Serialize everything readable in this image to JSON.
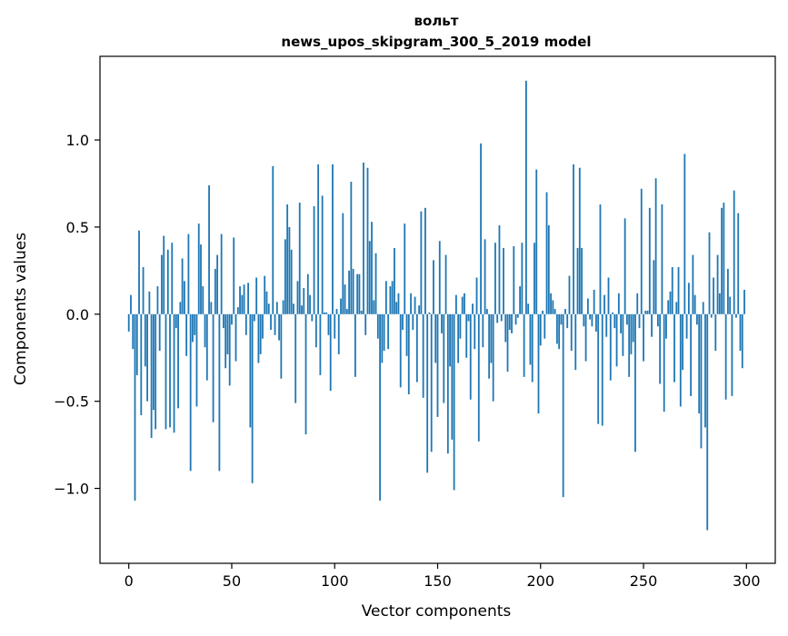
{
  "chart_data": {
    "type": "bar",
    "title": "вольт",
    "subtitle": "news_upos_skipgram_300_5_2019 model",
    "xlabel": "Vector components",
    "ylabel": "Components values",
    "xlim": [
      -14,
      314
    ],
    "ylim": [
      -1.43,
      1.48
    ],
    "xticks": [
      0,
      50,
      100,
      150,
      200,
      250,
      300
    ],
    "xtick_labels": [
      "0",
      "50",
      "100",
      "150",
      "200",
      "250",
      "300"
    ],
    "yticks": [
      -1.0,
      -0.5,
      0.0,
      0.5,
      1.0
    ],
    "ytick_labels": [
      "−1.0",
      "−0.5",
      "0.0",
      "0.5",
      "1.0"
    ],
    "grid": false,
    "bar_color": "#1f77b4",
    "values": [
      -0.1,
      0.11,
      -0.2,
      -1.07,
      -0.35,
      0.48,
      -0.58,
      0.27,
      -0.3,
      -0.5,
      0.13,
      -0.71,
      -0.55,
      -0.66,
      0.16,
      -0.21,
      0.34,
      0.45,
      -0.66,
      0.37,
      -0.65,
      0.41,
      -0.68,
      -0.08,
      -0.54,
      0.07,
      0.32,
      0.19,
      -0.24,
      0.46,
      -0.9,
      -0.16,
      -0.12,
      -0.53,
      0.52,
      0.4,
      0.16,
      -0.19,
      -0.38,
      0.74,
      0.07,
      -0.62,
      0.26,
      0.34,
      -0.9,
      0.46,
      -0.08,
      -0.31,
      -0.23,
      -0.41,
      -0.06,
      0.44,
      -0.27,
      0.04,
      0.16,
      0.11,
      0.17,
      -0.12,
      0.18,
      -0.65,
      -0.97,
      -0.04,
      0.21,
      -0.28,
      -0.23,
      -0.14,
      0.22,
      0.13,
      0.06,
      -0.09,
      0.85,
      -0.12,
      0.07,
      -0.15,
      -0.37,
      0.08,
      0.43,
      0.63,
      0.5,
      0.37,
      0.06,
      -0.51,
      0.19,
      0.64,
      0.05,
      0.15,
      -0.69,
      0.23,
      0.11,
      -0.04,
      0.62,
      -0.19,
      0.86,
      -0.35,
      0.68,
      0.01,
      0.01,
      -0.12,
      -0.44,
      0.86,
      -0.14,
      0.03,
      -0.23,
      0.09,
      0.58,
      0.17,
      0.03,
      0.25,
      0.76,
      0.26,
      -0.36,
      0.23,
      0.23,
      0.02,
      0.87,
      -0.12,
      0.84,
      0.42,
      0.53,
      0.08,
      0.35,
      -0.14,
      -1.07,
      -0.28,
      -0.21,
      0.19,
      -0.2,
      0.16,
      0.19,
      0.38,
      0.07,
      0.12,
      -0.42,
      -0.09,
      0.52,
      -0.24,
      -0.46,
      0.12,
      -0.09,
      0.1,
      -0.39,
      0.05,
      0.59,
      -0.48,
      0.61,
      -0.91,
      0.01,
      -0.79,
      0.31,
      -0.28,
      -0.59,
      0.42,
      -0.11,
      -0.51,
      0.34,
      -0.8,
      -0.3,
      -0.72,
      -1.01,
      0.11,
      -0.28,
      -0.14,
      0.1,
      0.12,
      -0.25,
      -0.04,
      -0.49,
      0.06,
      -0.2,
      0.21,
      -0.73,
      0.98,
      -0.19,
      0.43,
      0.03,
      -0.37,
      -0.28,
      -0.5,
      0.41,
      -0.05,
      0.51,
      -0.04,
      0.38,
      -0.16,
      -0.33,
      -0.09,
      -0.11,
      0.39,
      -0.06,
      -0.02,
      0.16,
      0.41,
      -0.36,
      1.34,
      0.06,
      -0.29,
      -0.39,
      0.41,
      0.83,
      -0.57,
      -0.18,
      0.02,
      -0.14,
      0.7,
      0.51,
      0.12,
      0.08,
      0.03,
      -0.17,
      -0.2,
      -0.06,
      -1.05,
      0.03,
      -0.08,
      0.22,
      -0.21,
      0.86,
      -0.32,
      0.38,
      0.84,
      0.38,
      -0.07,
      -0.27,
      0.09,
      -0.03,
      -0.07,
      0.14,
      -0.1,
      -0.63,
      0.63,
      -0.64,
      0.11,
      -0.13,
      0.21,
      -0.38,
      0.01,
      -0.08,
      -0.3,
      0.12,
      -0.11,
      -0.24,
      0.55,
      -0.06,
      -0.36,
      -0.23,
      -0.16,
      -0.79,
      0.12,
      -0.08,
      0.72,
      -0.27,
      0.02,
      0.02,
      0.61,
      -0.13,
      0.31,
      0.78,
      -0.07,
      -0.4,
      0.63,
      -0.56,
      -0.14,
      0.08,
      0.13,
      0.27,
      -0.39,
      0.07,
      0.27,
      -0.53,
      -0.32,
      0.92,
      -0.14,
      0.18,
      -0.47,
      0.34,
      0.11,
      -0.06,
      -0.57,
      -0.77,
      0.07,
      -0.65,
      -1.24,
      0.47,
      -0.02,
      0.21,
      -0.21,
      0.34,
      0.12,
      0.61,
      0.64,
      -0.49,
      0.26,
      0.1,
      -0.47,
      0.71,
      -0.02,
      0.58,
      -0.21,
      -0.31,
      0.14
    ]
  }
}
